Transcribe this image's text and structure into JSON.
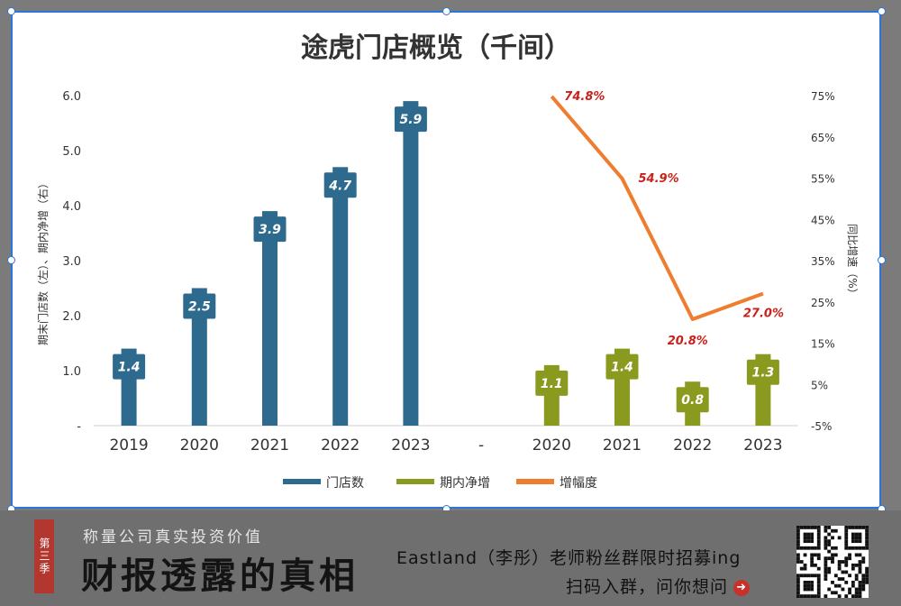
{
  "chart_data": {
    "type": "bar",
    "title": "途虎门店概览（千间）",
    "left_axis_label": "期末门店数（左）、期内净增（右）",
    "right_axis_label": "同比增速（%）",
    "left_ticks": [
      "-",
      "1.0",
      "2.0",
      "3.0",
      "4.0",
      "5.0",
      "6.0"
    ],
    "right_ticks": [
      "-5%",
      "5%",
      "15%",
      "25%",
      "35%",
      "45%",
      "55%",
      "65%",
      "75%"
    ],
    "ylim_left": [
      0,
      6
    ],
    "ylim_right": [
      -5,
      75
    ],
    "categories": [
      "2019",
      "2020",
      "2021",
      "2022",
      "2023",
      "-",
      "2020",
      "2021",
      "2022",
      "2023"
    ],
    "series": [
      {
        "name": "门店数",
        "color": "#2e6a8d",
        "x": [
          "2019",
          "2020",
          "2021",
          "2022",
          "2023"
        ],
        "values": [
          1.4,
          2.5,
          3.9,
          4.7,
          5.9
        ],
        "labels": [
          "1.4",
          "2.5",
          "3.9",
          "4.7",
          "5.9"
        ]
      },
      {
        "name": "期内净增",
        "color": "#8a9a1e",
        "x": [
          "2020",
          "2021",
          "2022",
          "2023"
        ],
        "values": [
          1.1,
          1.4,
          0.8,
          1.3
        ],
        "labels": [
          "1.1",
          "1.4",
          "0.8",
          "1.3"
        ]
      },
      {
        "name": "增幅度",
        "color": "#ee7d2f",
        "type": "line",
        "axis": "right",
        "x": [
          "2020",
          "2021",
          "2022",
          "2023"
        ],
        "values": [
          74.8,
          54.9,
          20.8,
          27.0
        ],
        "labels": [
          "74.8%",
          "54.9%",
          "20.8%",
          "27.0%"
        ]
      }
    ],
    "legend": {
      "placement": "bottom",
      "entries": [
        "门店数",
        "期内净增",
        "增幅度"
      ]
    },
    "grid": false,
    "label_color": "#c8211a"
  },
  "footer": {
    "season_badge": "第三季",
    "subtitle": "称量公司真实投资价值",
    "main_title": "财报透露的真相",
    "promo": "Eastland（李彤）老师粉丝群限时招募ing",
    "scan_text": "扫码入群，问你想问",
    "arrow_icon": "arrow-right-circle-icon",
    "qr_icon": "qr-code-icon"
  }
}
